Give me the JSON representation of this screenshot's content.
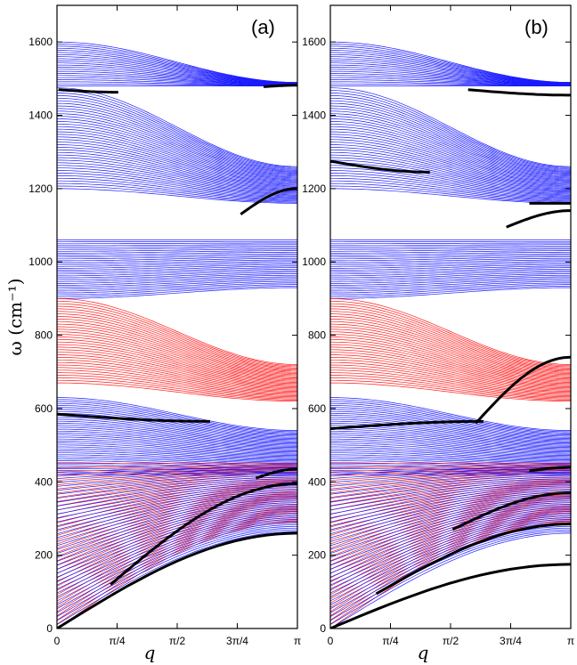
{
  "chart_data": [
    {
      "panel_label": "(a)",
      "type": "line",
      "xlabel": "q",
      "ylabel": "ω (cm⁻¹)",
      "xlim": [
        0,
        3.14159
      ],
      "ylim": [
        0,
        1700
      ],
      "xticks": [
        {
          "value": 0,
          "label": "0"
        },
        {
          "value": 0.785398,
          "label": "π/4"
        },
        {
          "value": 1.570796,
          "label": "π/2"
        },
        {
          "value": 2.356194,
          "label": "3π/4"
        },
        {
          "value": 3.14159,
          "label": "π"
        }
      ],
      "yticks": [
        0,
        200,
        400,
        600,
        800,
        1000,
        1200,
        1400,
        1600
      ],
      "colors": {
        "band_blue": "#1a1aff",
        "band_red": "#ff1a1a",
        "edge_modes": "#000000"
      },
      "bands": [
        {
          "color": "blue",
          "count": 22,
          "start": [
            1480,
            1600
          ],
          "end": [
            1480,
            1490
          ],
          "shape": "cos"
        },
        {
          "color": "blue",
          "count": 40,
          "start": [
            1200,
            1475
          ],
          "end": [
            1160,
            1260
          ],
          "shape": "cos"
        },
        {
          "color": "blue",
          "count": 32,
          "start": [
            900,
            1060
          ],
          "end": [
            930,
            1060
          ],
          "shape": "cos"
        },
        {
          "color": "red",
          "count": 34,
          "start": [
            670,
            900
          ],
          "end": [
            620,
            720
          ],
          "shape": "cos"
        },
        {
          "color": "blue",
          "count": 40,
          "start": [
            420,
            630
          ],
          "end": [
            420,
            540
          ],
          "shape": "cos"
        },
        {
          "color": "red",
          "count": 40,
          "start": [
            0,
            450
          ],
          "end": [
            290,
            450
          ],
          "shape": "sin"
        },
        {
          "color": "blue",
          "count": 40,
          "start": [
            0,
            420
          ],
          "end": [
            260,
            440
          ],
          "shape": "sin"
        }
      ],
      "edge_modes": [
        {
          "x": [
            0.02,
            0.8
          ],
          "y": [
            1470,
            1463
          ]
        },
        {
          "x": [
            2.7,
            3.14
          ],
          "y": [
            1478,
            1482
          ]
        },
        {
          "x": [
            2.4,
            3.14
          ],
          "y": [
            1130,
            1200
          ]
        },
        {
          "x": [
            0,
            2.0
          ],
          "y": [
            585,
            565
          ]
        },
        {
          "x": [
            0,
            3.14
          ],
          "y": [
            0,
            260
          ]
        },
        {
          "x": [
            0.7,
            3.14
          ],
          "y": [
            120,
            395
          ]
        },
        {
          "x": [
            2.6,
            3.14
          ],
          "y": [
            410,
            435
          ]
        }
      ]
    },
    {
      "panel_label": "(b)",
      "type": "line",
      "xlabel": "q",
      "xlim": [
        0,
        3.14159
      ],
      "ylim": [
        0,
        1700
      ],
      "xticks": [
        {
          "value": 0,
          "label": "0"
        },
        {
          "value": 0.785398,
          "label": "π/4"
        },
        {
          "value": 1.570796,
          "label": "π/2"
        },
        {
          "value": 2.356194,
          "label": "3π/4"
        },
        {
          "value": 3.14159,
          "label": "π"
        }
      ],
      "yticks": [
        0,
        200,
        400,
        600,
        800,
        1000,
        1200,
        1400,
        1600
      ],
      "colors": {
        "band_blue": "#1a1aff",
        "band_red": "#ff1a1a",
        "edge_modes": "#000000"
      },
      "bands": [
        {
          "color": "blue",
          "count": 22,
          "start": [
            1480,
            1600
          ],
          "end": [
            1480,
            1490
          ],
          "shape": "cos"
        },
        {
          "color": "blue",
          "count": 40,
          "start": [
            1200,
            1475
          ],
          "end": [
            1160,
            1260
          ],
          "shape": "cos"
        },
        {
          "color": "blue",
          "count": 32,
          "start": [
            900,
            1060
          ],
          "end": [
            930,
            1060
          ],
          "shape": "cos"
        },
        {
          "color": "red",
          "count": 34,
          "start": [
            670,
            900
          ],
          "end": [
            620,
            720
          ],
          "shape": "cos"
        },
        {
          "color": "blue",
          "count": 40,
          "start": [
            420,
            630
          ],
          "end": [
            420,
            540
          ],
          "shape": "cos"
        },
        {
          "color": "red",
          "count": 40,
          "start": [
            0,
            450
          ],
          "end": [
            290,
            450
          ],
          "shape": "sin"
        },
        {
          "color": "blue",
          "count": 40,
          "start": [
            0,
            420
          ],
          "end": [
            260,
            440
          ],
          "shape": "sin"
        }
      ],
      "edge_modes": [
        {
          "x": [
            0,
            1.3
          ],
          "y": [
            1275,
            1245
          ]
        },
        {
          "x": [
            1.8,
            3.14
          ],
          "y": [
            1470,
            1455
          ]
        },
        {
          "x": [
            2.3,
            3.14
          ],
          "y": [
            1095,
            1140
          ]
        },
        {
          "x": [
            2.6,
            3.14
          ],
          "y": [
            1160,
            1160
          ]
        },
        {
          "x": [
            0,
            2.0
          ],
          "y": [
            545,
            565
          ]
        },
        {
          "x": [
            1.9,
            3.14
          ],
          "y": [
            560,
            740
          ]
        },
        {
          "x": [
            0,
            3.14
          ],
          "y": [
            0,
            175
          ]
        },
        {
          "x": [
            0.6,
            3.14
          ],
          "y": [
            95,
            285
          ]
        },
        {
          "x": [
            1.6,
            3.14
          ],
          "y": [
            270,
            370
          ]
        },
        {
          "x": [
            2.6,
            3.14
          ],
          "y": [
            430,
            440
          ]
        }
      ]
    }
  ]
}
